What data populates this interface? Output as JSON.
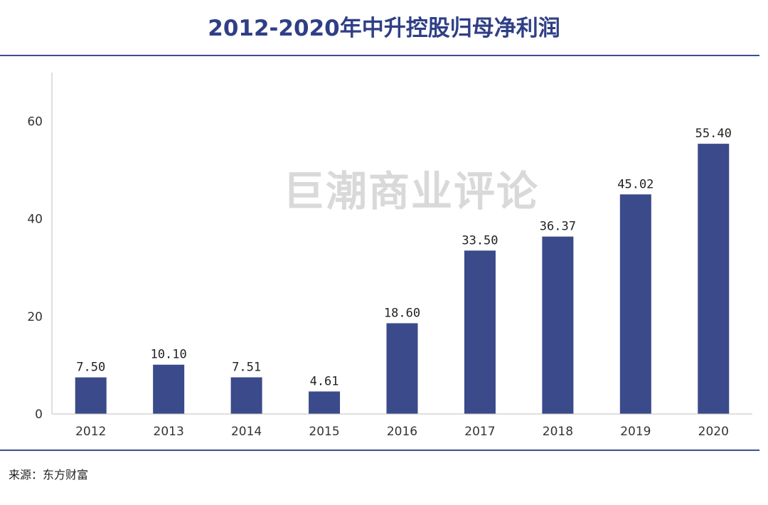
{
  "source_note": "来源：东方财富",
  "watermark": "巨潮商业评论",
  "colors": {
    "bar": "#3b4a8a",
    "title": "#2f3f86",
    "rule": "#3e4e8f"
  },
  "chart_data": {
    "type": "bar",
    "title": "2012-2020年中升控股归母净利润",
    "categories": [
      "2012",
      "2013",
      "2014",
      "2015",
      "2016",
      "2017",
      "2018",
      "2019",
      "2020"
    ],
    "values": [
      7.5,
      10.1,
      7.51,
      4.61,
      18.6,
      33.5,
      36.37,
      45.02,
      55.4
    ],
    "data_labels": [
      "7.50",
      "10.10",
      "7.51",
      "4.61",
      "18.60",
      "33.50",
      "36.37",
      "45.02",
      "55.40"
    ],
    "y_ticks": [
      0,
      20,
      40,
      60
    ],
    "ylim": [
      0,
      70
    ],
    "xlabel": "",
    "ylabel": "",
    "grid": false,
    "legend": "none"
  }
}
